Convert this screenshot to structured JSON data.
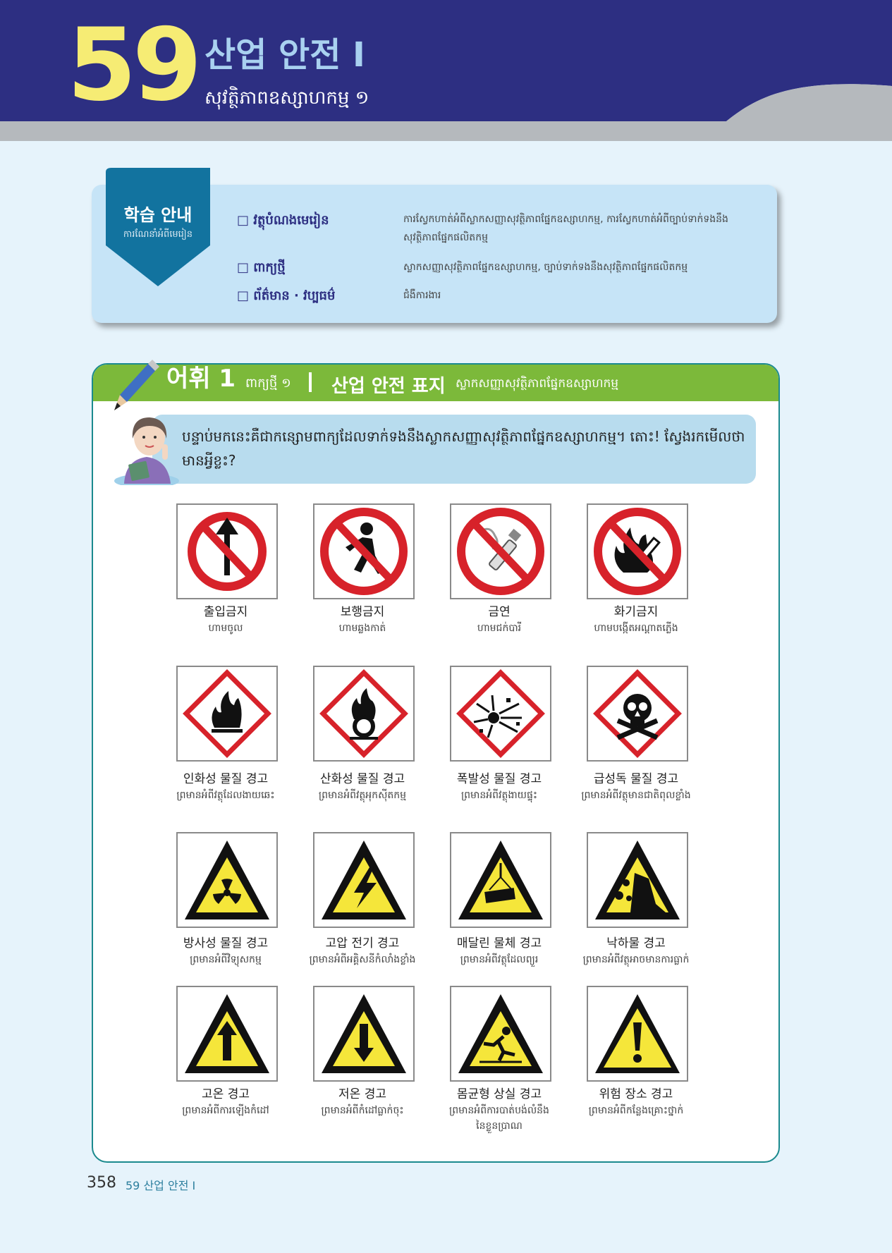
{
  "header": {
    "lesson_number": "59",
    "title": "산업 안전 I",
    "subtitle": "សុវត្ថិភាពឧស្សាហកម្ម ១",
    "colors": {
      "band": "#2d2f82",
      "number": "#f6ec74",
      "title": "#a9d1f0",
      "stripe": "#b5b9bd"
    }
  },
  "study_guide": {
    "title": "학습 안내",
    "subtitle": "ការណែនាំអំពីមេរៀន",
    "items": [
      {
        "label": "□ វត្ថុបំណងមេរៀន",
        "text": "ការស្វែកហាត់អំពីស្លាកសញ្ញាសុវត្ថិភាពផ្នែកឧស្សាហកម្ម, ការស្វែកហាត់អំពីច្បាប់ទាក់ទងនឹងសុវត្ថិភាពផ្នែកផលិតកម្ម"
      },
      {
        "label": "□ ពាក្យថ្មី",
        "text": "ស្លាកសញ្ញាសុវត្ថិភាពផ្នែកឧស្សាហកម្ម, ច្បាប់ទាក់ទងនឹងសុវត្ថិភាពផ្នែកផលិតកម្ម"
      },
      {
        "label": "□ ព័ត៌មាន · វប្បធម៌",
        "text": "ជំងឺការងារ"
      }
    ]
  },
  "vocab": {
    "heading": "어휘 1",
    "heading_km": "ពាក្យថ្មី ១",
    "topic": "산업 안전 표지",
    "topic_km": "ស្លាកសញ្ញាសុវត្ថិភាពផ្នែកឧស្សាហកម្ម",
    "intro": "បន្ទាប់មកនេះគឺជាកន្សោមពាក្យដែលទាក់ទងនឹងស្លាកសញ្ញាសុវត្ថិភាពផ្នែកឧស្សាហកម្ម។ តោះ! ស្វែងរកមើលថាមានអ្វីខ្លះ?",
    "signs": [
      {
        "icon": "no-entry-icon",
        "ko": "출입금지",
        "km": "ហាមចូល"
      },
      {
        "icon": "no-pedestrian-icon",
        "ko": "보행금지",
        "km": "ហាមឆ្លងកាត់"
      },
      {
        "icon": "no-smoking-icon",
        "ko": "금연",
        "km": "ហាមជក់បារី"
      },
      {
        "icon": "no-open-flame-icon",
        "ko": "화기금지",
        "km": "ហាមបង្កើតអណ្តាតភ្លើង"
      },
      {
        "icon": "flammable-icon",
        "ko": "인화성 물질 경고",
        "km": "ព្រមានអំពីវត្ថុដែលងាយឆេះ"
      },
      {
        "icon": "oxidizer-icon",
        "ko": "산화성 물질 경고",
        "km": "ព្រមានអំពីវត្ថុអុកស៊ីតកម្ម"
      },
      {
        "icon": "explosive-icon",
        "ko": "폭발성 물질 경고",
        "km": "ព្រមានអំពីវត្ថុងាយផ្ទុះ"
      },
      {
        "icon": "toxic-icon",
        "ko": "급성독 물질 경고",
        "km": "ព្រមានអំពីវត្ថុមានជាតិពុលខ្លាំង"
      },
      {
        "icon": "radioactive-icon",
        "ko": "방사성 물질 경고",
        "km": "ព្រមានអំពីវិទ្យុសកម្ម"
      },
      {
        "icon": "high-voltage-icon",
        "ko": "고압 전기 경고",
        "km": "ព្រមានអំពីអគ្គិសនីកំលាំងខ្លាំង"
      },
      {
        "icon": "suspended-load-icon",
        "ko": "매달린 물체 경고",
        "km": "ព្រមានអំពីវត្ថុដែលព្យួរ"
      },
      {
        "icon": "falling-object-icon",
        "ko": "낙하물 경고",
        "km": "ព្រមានអំពីវត្ថុអាចមានការធ្លាក់"
      },
      {
        "icon": "high-temperature-icon",
        "ko": "고온 경고",
        "km": "ព្រមានអំពីការឡើងកំដៅ"
      },
      {
        "icon": "low-temperature-icon",
        "ko": "저온 경고",
        "km": "ព្រមានអំពីកំដៅធ្លាក់ចុះ"
      },
      {
        "icon": "loss-of-balance-icon",
        "ko": "몸균형 상실 경고",
        "km": "ព្រមានអំពីការបាត់បង់លំនឹងនៃខ្លួនប្រាណ"
      },
      {
        "icon": "danger-zone-icon",
        "ko": "위험 장소 경고",
        "km": "ព្រមានអំពីកន្លែងគ្រោះថ្នាក់"
      }
    ]
  },
  "footer": {
    "page_number": "358",
    "chapter": "59 산업 안전 I"
  }
}
